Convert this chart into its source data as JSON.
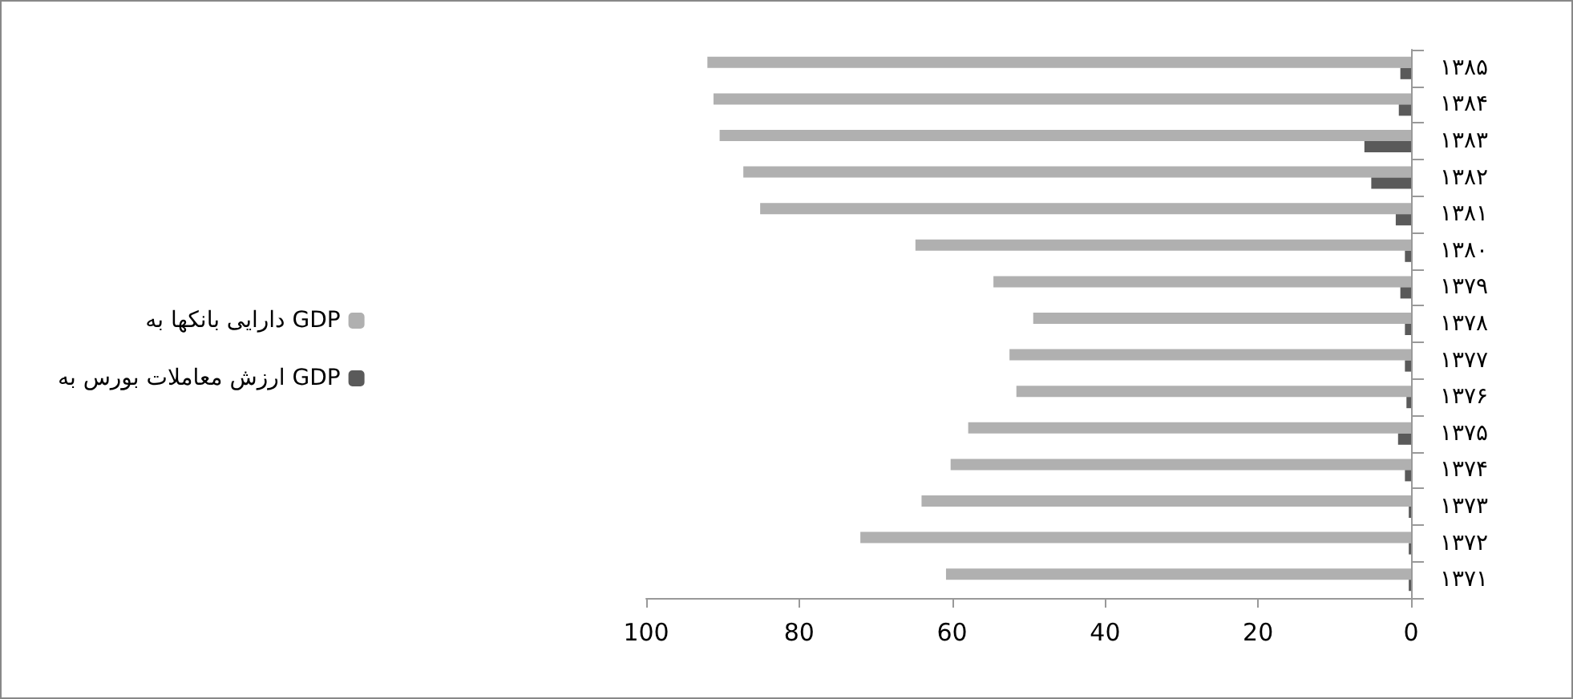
{
  "chart_data": {
    "type": "bar",
    "orientation": "horizontal",
    "categories": [
      "۱۳۸۵",
      "۱۳۸۴",
      "۱۳۸۳",
      "۱۳۸۲",
      "۱۳۸۱",
      "۱۳۸۰",
      "۱۳۷۹",
      "۱۳۷۸",
      "۱۳۷۷",
      "۱۳۷۶",
      "۱۳۷۵",
      "۱۳۷۴",
      "۱۳۷۳",
      "۱۳۷۲",
      "۱۳۷۱"
    ],
    "series": [
      {
        "name": "دارایی بانکها به GDP",
        "color": "#b0b0b0",
        "values": [
          92.0,
          91.2,
          90.4,
          87.3,
          85.1,
          64.8,
          54.6,
          49.4,
          52.5,
          51.6,
          57.9,
          60.2,
          64.0,
          72.0,
          60.8
        ]
      },
      {
        "name": "ارزش معاملات بورس به GDP",
        "color": "#5a5a5a",
        "values": [
          1.4,
          1.6,
          6.1,
          5.2,
          2.0,
          0.8,
          1.4,
          0.8,
          0.8,
          0.6,
          1.7,
          0.8,
          0.3,
          0.3,
          0.3
        ]
      }
    ],
    "xlim": [
      100,
      0
    ],
    "xticks": [
      100,
      80,
      60,
      40,
      20,
      0
    ],
    "grid": false,
    "legend": "left"
  }
}
